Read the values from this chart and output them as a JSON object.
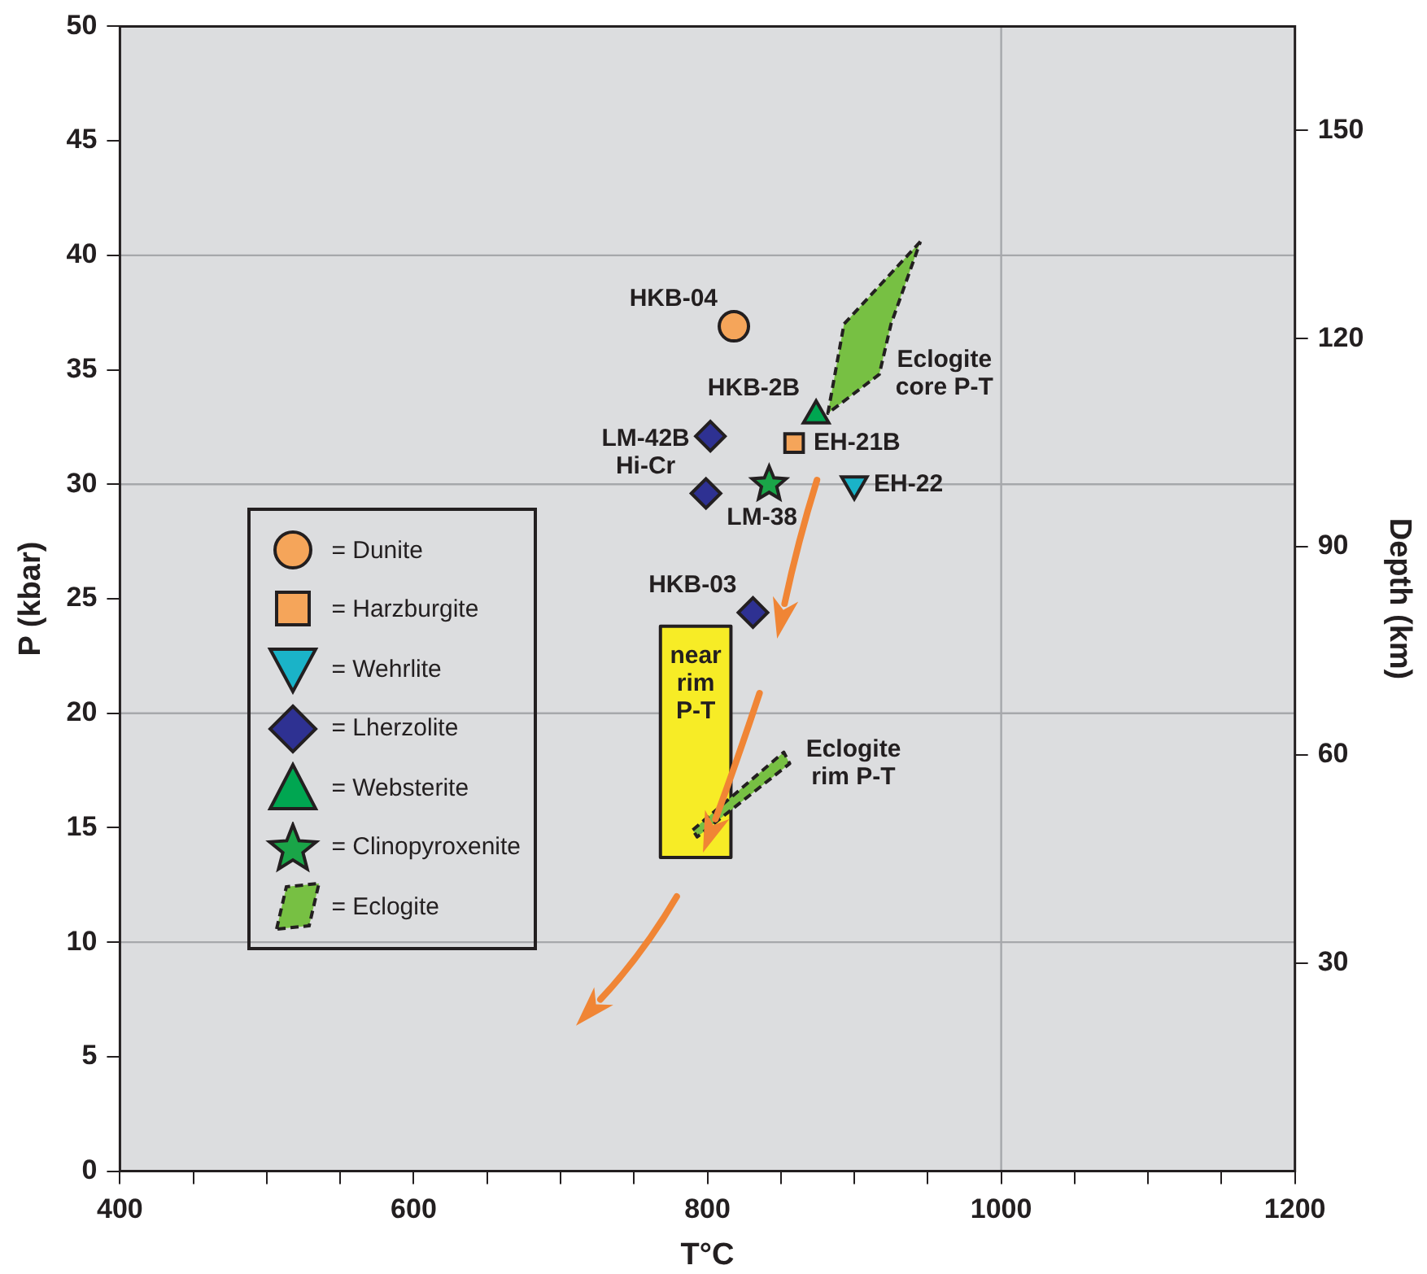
{
  "chart_data": {
    "type": "scatter",
    "xlabel": "T°C",
    "ylabel": "P (kbar)",
    "y2label": "Depth (km)",
    "xlim": [
      400,
      1200
    ],
    "xticks": [
      400,
      {
        "value": 450,
        "label": null
      },
      {
        "value": 500,
        "label": null
      },
      {
        "value": 550,
        "label": null
      },
      600,
      {
        "value": 650,
        "label": null
      },
      {
        "value": 700,
        "label": null
      },
      {
        "value": 750,
        "label": null
      },
      800,
      {
        "value": 850,
        "label": null
      },
      {
        "value": 900,
        "label": null
      },
      {
        "value": 950,
        "label": null
      },
      1000,
      {
        "value": 1050,
        "label": null
      },
      {
        "value": 1100,
        "label": null
      },
      {
        "value": 1150,
        "label": null
      },
      1200
    ],
    "ylim": [
      0,
      50
    ],
    "yticks": [
      0,
      5,
      10,
      15,
      20,
      25,
      30,
      35,
      40,
      45,
      50
    ],
    "y2lim": [
      0,
      165
    ],
    "y2ticks": [
      30,
      60,
      90,
      120,
      150
    ],
    "legend": "left",
    "series": [
      {
        "name": "= Dunite",
        "marker": "circle",
        "color": "#f5a55a",
        "x": [
          818
        ],
        "values": [
          36.9
        ],
        "value_labels": [
          "HKB-04"
        ]
      },
      {
        "name": "= Harzburgite",
        "marker": "square",
        "color": "#f5a55a",
        "x": [
          859
        ],
        "values": [
          31.8
        ],
        "value_labels": [
          "EH-21B"
        ]
      },
      {
        "name": "= Wehrlite",
        "marker": "triangle-down",
        "color": "#1ab3c8",
        "x": [
          900
        ],
        "values": [
          30.0
        ],
        "value_labels": [
          "EH-22"
        ]
      },
      {
        "name": "= Lherzolite",
        "marker": "diamond",
        "color": "#2e3192",
        "x": [
          802,
          799,
          831
        ],
        "values": [
          32.1,
          29.6,
          24.4
        ],
        "value_labels": [
          null,
          "LM-42B\nHi-Cr",
          "HKB-03"
        ]
      },
      {
        "name": "= Websterite",
        "marker": "triangle",
        "color": "#00a651",
        "x": [
          874
        ],
        "values": [
          33.0
        ],
        "value_labels": [
          "HKB-2B"
        ]
      },
      {
        "name": "= Clinopyroxenite",
        "marker": "star",
        "color": "#1aa548",
        "x": [
          842
        ],
        "values": [
          30.0
        ],
        "value_labels": [
          "LM-38"
        ]
      },
      {
        "name": "= Eclogite",
        "type": "area",
        "line_style": "dashed",
        "color": "#77c043",
        "x": [
          945,
          893,
          882,
          917,
          925
        ],
        "values": [
          40.6,
          37.0,
          33.1,
          34.8,
          37.0
        ],
        "value_labels": [
          null,
          null,
          null,
          "Eclogite\ncore P-T",
          null
        ]
      },
      {
        "type": "area",
        "line_style": "dashed",
        "color": "#77c043",
        "x": [
          790,
          852,
          856,
          793
        ],
        "values": [
          14.9,
          18.3,
          17.8,
          14.6
        ],
        "value_labels": [
          null,
          null,
          "Eclogite\nrim P-T",
          null
        ]
      },
      {
        "type": "area",
        "line_style": "solid",
        "color": "#f7ec26",
        "x": [
          768,
          816,
          816,
          768
        ],
        "values": [
          13.7,
          13.7,
          23.8,
          23.8
        ],
        "value_labels": [
          null,
          null,
          null,
          "near\nrim\nP-T"
        ]
      }
    ],
    "ref_lines": [
      {
        "axis": "y",
        "value": 10,
        "color": "#a6a8ab"
      },
      {
        "axis": "y",
        "value": 20,
        "color": "#a6a8ab"
      },
      {
        "axis": "y",
        "value": 30,
        "color": "#a6a8ab"
      },
      {
        "axis": "y",
        "value": 40,
        "color": "#a6a8ab"
      },
      {
        "axis": "x",
        "value": 1000,
        "color": "#a6a8ab"
      }
    ]
  }
}
